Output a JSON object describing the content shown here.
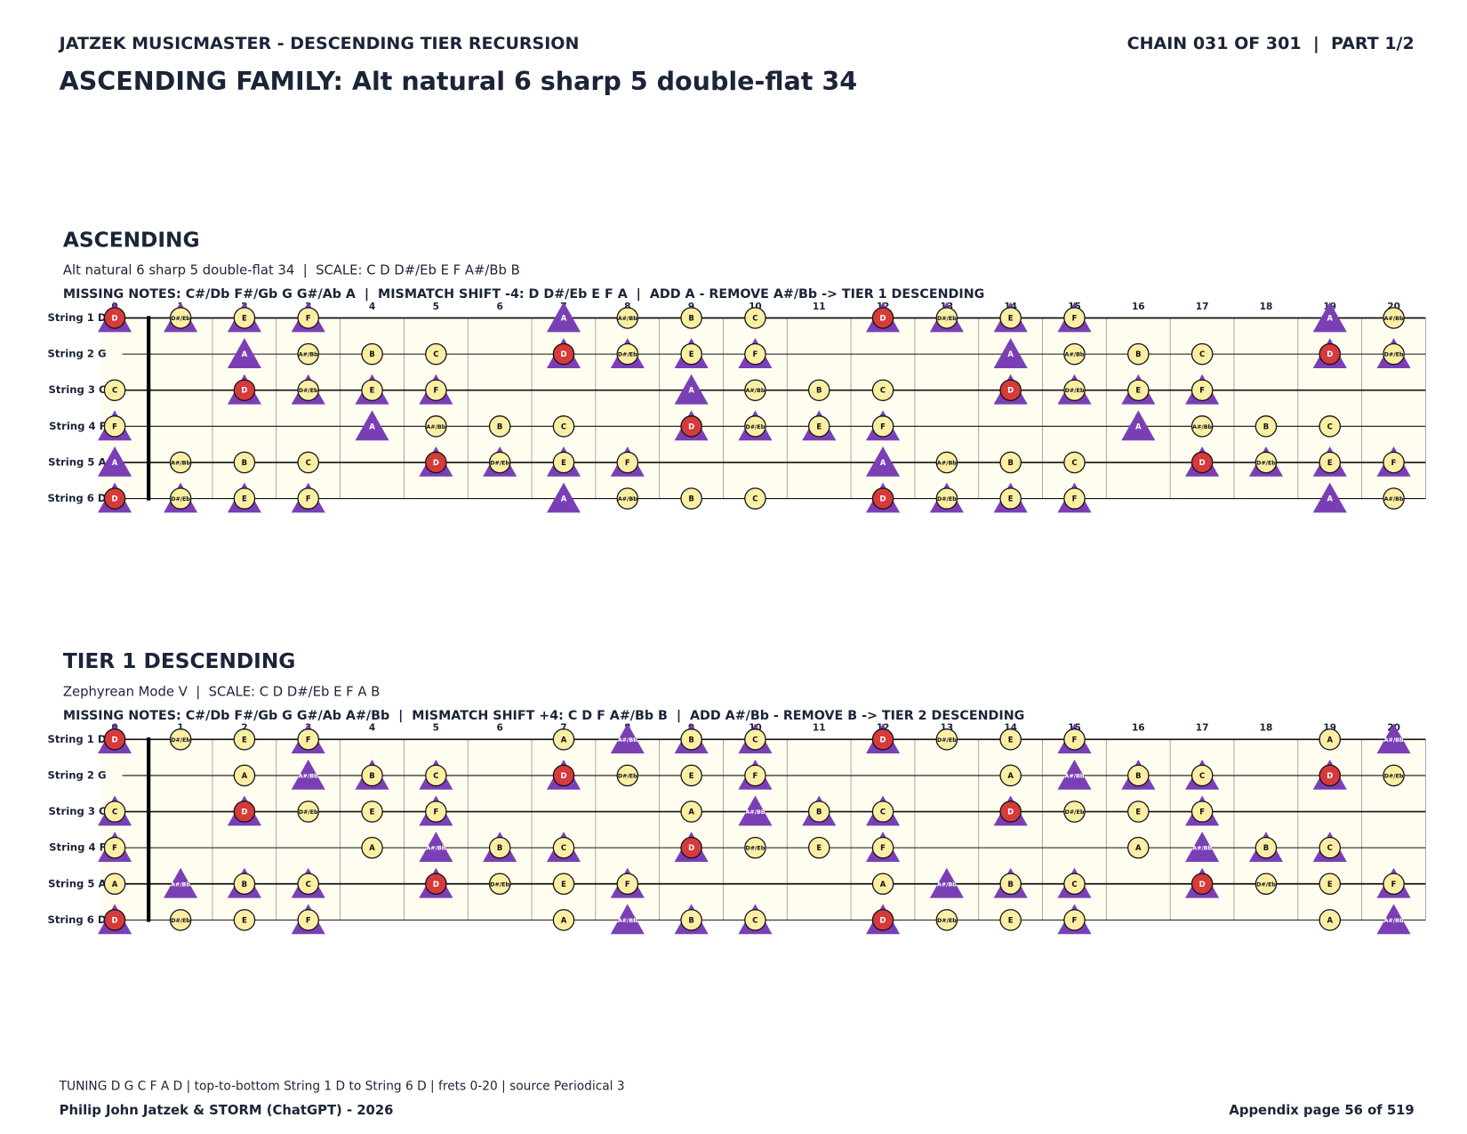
{
  "header": {
    "left": "JATZEK MUSICMASTER - DESCENDING TIER RECURSION",
    "right": "CHAIN 031 OF 301  |  PART 1/2",
    "title": "ASCENDING FAMILY: Alt natural 6 sharp 5 double-flat 34"
  },
  "fretboard": {
    "strings": [
      "String 1 D",
      "String 2 G",
      "String 3 C",
      "String 4 F",
      "String 5 A",
      "String 6 D"
    ],
    "frets": [
      0,
      1,
      2,
      3,
      4,
      5,
      6,
      7,
      8,
      9,
      10,
      11,
      12,
      13,
      14,
      15,
      16,
      17,
      18,
      19,
      20
    ],
    "root": "D",
    "notes": [
      [
        "D",
        "D#/Eb",
        "E",
        "F",
        null,
        null,
        null,
        "A",
        "A#/Bb",
        "B",
        "C",
        null,
        "D",
        "D#/Eb",
        "E",
        "F",
        null,
        null,
        null,
        "A",
        "A#/Bb"
      ],
      [
        null,
        null,
        "A",
        "A#/Bb",
        "B",
        "C",
        null,
        "D",
        "D#/Eb",
        "E",
        "F",
        null,
        null,
        null,
        "A",
        "A#/Bb",
        "B",
        "C",
        null,
        "D",
        "D#/Eb"
      ],
      [
        "C",
        null,
        "D",
        "D#/Eb",
        "E",
        "F",
        null,
        null,
        null,
        "A",
        "A#/Bb",
        "B",
        "C",
        null,
        "D",
        "D#/Eb",
        "E",
        "F",
        null,
        null,
        null
      ],
      [
        "F",
        null,
        null,
        null,
        "A",
        "A#/Bb",
        "B",
        "C",
        null,
        "D",
        "D#/Eb",
        "E",
        "F",
        null,
        null,
        null,
        "A",
        "A#/Bb",
        "B",
        "C",
        null
      ],
      [
        "A",
        "A#/Bb",
        "B",
        "C",
        null,
        "D",
        "D#/Eb",
        "E",
        "F",
        null,
        null,
        null,
        "A",
        "A#/Bb",
        "B",
        "C",
        null,
        "D",
        "D#/Eb",
        "E",
        "F"
      ],
      [
        "D",
        "D#/Eb",
        "E",
        "F",
        null,
        null,
        null,
        "A",
        "A#/Bb",
        "B",
        "C",
        null,
        "D",
        "D#/Eb",
        "E",
        "F",
        null,
        null,
        null,
        "A",
        "A#/Bb"
      ]
    ]
  },
  "panels": [
    {
      "heading": "ASCENDING",
      "subtitle": "Alt natural 6 sharp 5 double-flat 34  |  SCALE: C D D#/Eb E F A#/Bb B",
      "info": "MISSING NOTES: C#/Db F#/Gb G G#/Ab A  |  MISMATCH SHIFT -4: D D#/Eb E F A  |  ADD A - REMOVE A#/Bb -> TIER 1 DESCENDING",
      "scale": [
        "C",
        "D",
        "D#/Eb",
        "E",
        "F",
        "A#/Bb",
        "B"
      ],
      "target": [
        "D",
        "D#/Eb",
        "E",
        "F",
        "A"
      ]
    },
    {
      "heading": "TIER 1 DESCENDING",
      "subtitle": "Zephyrean Mode V  |  SCALE: C D D#/Eb E F A B",
      "info": "MISSING NOTES: C#/Db F#/Gb G G#/Ab A#/Bb  |  MISMATCH SHIFT +4: C D F A#/Bb B  |  ADD A#/Bb - REMOVE B -> TIER 2 DESCENDING",
      "scale": [
        "C",
        "D",
        "D#/Eb",
        "E",
        "F",
        "A",
        "B"
      ],
      "target": [
        "C",
        "D",
        "F",
        "A#/Bb",
        "B"
      ]
    }
  ],
  "footer": {
    "note": "TUNING D G C F A D | top-to-bottom String 1 D to String 6 D | frets 0-20 | source Periodical 3",
    "author": "Philip John Jatzek & STORM (ChatGPT) - 2026",
    "page": "Appendix page 56 of 519"
  }
}
